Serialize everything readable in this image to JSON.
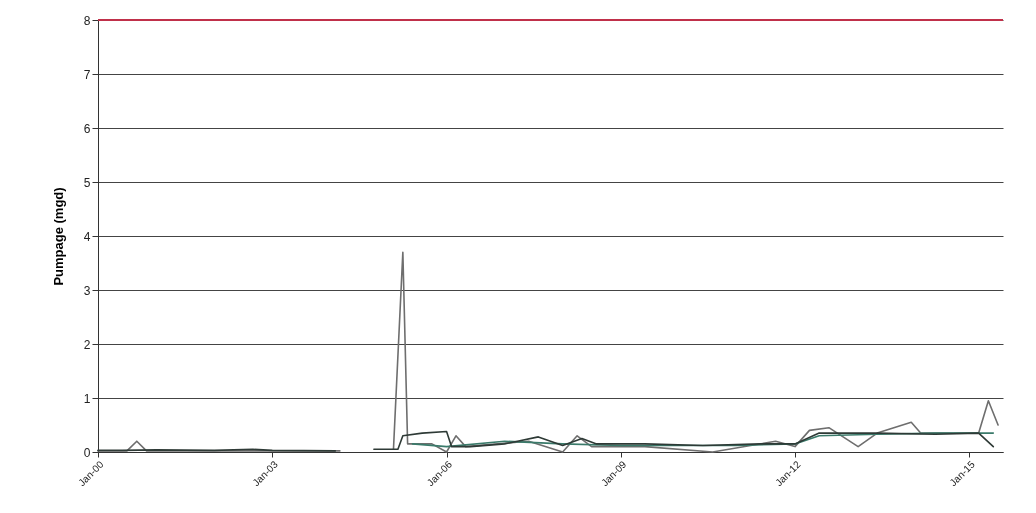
{
  "chart_data": {
    "type": "line",
    "ylabel": "Pumpage (mgd)",
    "xlim": [
      "2000-01",
      "2015-08"
    ],
    "xticks": [
      {
        "value": "2000-01",
        "label": "Jan-00"
      },
      {
        "value": "2003-01",
        "label": "Jan-03"
      },
      {
        "value": "2006-01",
        "label": "Jan-06"
      },
      {
        "value": "2009-01",
        "label": "Jan-09"
      },
      {
        "value": "2012-01",
        "label": "Jan-12"
      },
      {
        "value": "2015-01",
        "label": "Jan-15"
      }
    ],
    "ylim": [
      0,
      8
    ],
    "yticks": [
      0,
      1,
      2,
      3,
      4,
      5,
      6,
      7,
      8
    ],
    "grid": "y",
    "line_style": "solid",
    "marker": "none",
    "ref_lines": [
      {
        "axis": "y",
        "value": 8,
        "color": "#c0304a"
      }
    ],
    "series": [
      {
        "color": "#6e6e6e",
        "x": [
          "2000-01",
          "2000-07",
          "2000-09",
          "2000-11",
          "2003-01",
          "2004-03",
          "2004-06",
          "2005-02",
          "2005-04",
          "2005-05",
          "2005-10",
          "2006-01",
          "2006-03",
          "2006-05",
          "2007-06",
          "2008-01",
          "2008-04",
          "2008-07",
          "2009-06",
          "2010-08",
          "2011-09",
          "2012-01",
          "2012-04",
          "2012-08",
          "2013-02",
          "2013-06",
          "2014-01",
          "2014-03",
          "2015-03",
          "2015-05",
          "2015-07"
        ],
        "values": [
          0.02,
          0.02,
          0.2,
          0.02,
          0.02,
          0.02,
          null,
          0.05,
          3.7,
          0.15,
          0.15,
          0.0,
          0.3,
          0.1,
          0.2,
          0.0,
          0.3,
          0.1,
          0.1,
          0.0,
          0.2,
          0.1,
          0.4,
          0.45,
          0.1,
          0.35,
          0.55,
          0.35,
          0.35,
          0.95,
          0.5
        ]
      },
      {
        "color": "#3a7a6a",
        "x": [
          "2005-06",
          "2006-01",
          "2007-01",
          "2008-01",
          "2009-01",
          "2010-01",
          "2011-01",
          "2012-01",
          "2012-06",
          "2013-06",
          "2014-06",
          "2015-06"
        ],
        "values": [
          0.15,
          0.1,
          0.2,
          0.15,
          0.12,
          0.12,
          0.12,
          0.15,
          0.3,
          0.33,
          0.35,
          0.35
        ]
      },
      {
        "color": "#2e3a36",
        "x": [
          "2000-01",
          "2000-06",
          "2001-01",
          "2002-01",
          "2002-09",
          "2003-01",
          "2004-02",
          "2004-06",
          "2004-10",
          "2005-03",
          "2005-04",
          "2005-08",
          "2006-01",
          "2006-02",
          "2006-06",
          "2007-01",
          "2007-08",
          "2008-01",
          "2008-05",
          "2008-08",
          "2009-06",
          "2010-06",
          "2011-06",
          "2012-01",
          "2012-06",
          "2013-06",
          "2014-06",
          "2015-03",
          "2015-06"
        ],
        "values": [
          0.03,
          0.03,
          0.04,
          0.03,
          0.05,
          0.03,
          0.02,
          null,
          0.05,
          0.05,
          0.3,
          0.35,
          0.38,
          0.1,
          0.1,
          0.15,
          0.28,
          0.12,
          0.25,
          0.15,
          0.15,
          0.12,
          0.15,
          0.15,
          0.35,
          0.35,
          0.33,
          0.35,
          0.1
        ]
      }
    ]
  }
}
